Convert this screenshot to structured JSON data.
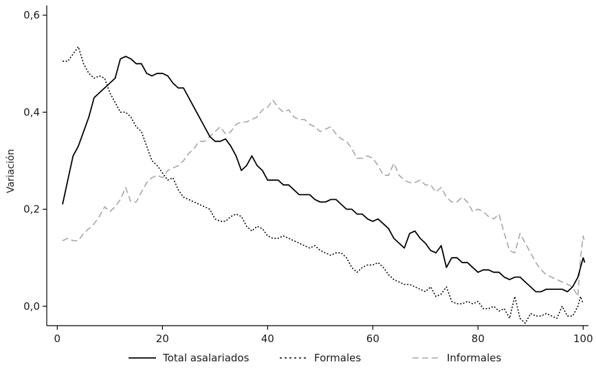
{
  "chart_data": {
    "type": "line",
    "title": "",
    "xlabel": "",
    "ylabel": "Variación",
    "xlim": [
      -2,
      101
    ],
    "ylim": [
      -0.04,
      0.62
    ],
    "xticks": [
      0,
      20,
      40,
      60,
      80,
      100
    ],
    "xtick_labels": [
      "0",
      "20",
      "40",
      "60",
      "80",
      "100"
    ],
    "yticks": [
      0.0,
      0.2,
      0.4,
      0.6
    ],
    "ytick_labels": [
      "0,0",
      "0,2",
      "0,4",
      "0,6"
    ],
    "grid": false,
    "legend_position": "bottom",
    "series": [
      {
        "name": "Total asalariados",
        "color": "#000000",
        "style": "solid",
        "points": [
          [
            1,
            0.21
          ],
          [
            2,
            0.26
          ],
          [
            3,
            0.31
          ],
          [
            4,
            0.33
          ],
          [
            5,
            0.36
          ],
          [
            6,
            0.39
          ],
          [
            7,
            0.43
          ],
          [
            8,
            0.44
          ],
          [
            9,
            0.45
          ],
          [
            10,
            0.46
          ],
          [
            11,
            0.47
          ],
          [
            12,
            0.51
          ],
          [
            13,
            0.515
          ],
          [
            14,
            0.51
          ],
          [
            15,
            0.5
          ],
          [
            16,
            0.5
          ],
          [
            17,
            0.48
          ],
          [
            18,
            0.475
          ],
          [
            19,
            0.48
          ],
          [
            20,
            0.48
          ],
          [
            21,
            0.475
          ],
          [
            22,
            0.46
          ],
          [
            23,
            0.45
          ],
          [
            24,
            0.45
          ],
          [
            25,
            0.43
          ],
          [
            26,
            0.41
          ],
          [
            27,
            0.39
          ],
          [
            28,
            0.37
          ],
          [
            29,
            0.35
          ],
          [
            30,
            0.34
          ],
          [
            31,
            0.34
          ],
          [
            32,
            0.345
          ],
          [
            33,
            0.33
          ],
          [
            34,
            0.31
          ],
          [
            35,
            0.28
          ],
          [
            36,
            0.29
          ],
          [
            37,
            0.31
          ],
          [
            38,
            0.29
          ],
          [
            39,
            0.28
          ],
          [
            40,
            0.26
          ],
          [
            41,
            0.26
          ],
          [
            42,
            0.26
          ],
          [
            43,
            0.25
          ],
          [
            44,
            0.25
          ],
          [
            45,
            0.24
          ],
          [
            46,
            0.23
          ],
          [
            47,
            0.23
          ],
          [
            48,
            0.23
          ],
          [
            49,
            0.22
          ],
          [
            50,
            0.215
          ],
          [
            51,
            0.215
          ],
          [
            52,
            0.22
          ],
          [
            53,
            0.22
          ],
          [
            54,
            0.21
          ],
          [
            55,
            0.2
          ],
          [
            56,
            0.2
          ],
          [
            57,
            0.19
          ],
          [
            58,
            0.19
          ],
          [
            59,
            0.18
          ],
          [
            60,
            0.175
          ],
          [
            61,
            0.18
          ],
          [
            62,
            0.17
          ],
          [
            63,
            0.16
          ],
          [
            64,
            0.14
          ],
          [
            65,
            0.13
          ],
          [
            66,
            0.12
          ],
          [
            67,
            0.15
          ],
          [
            68,
            0.155
          ],
          [
            69,
            0.14
          ],
          [
            70,
            0.13
          ],
          [
            71,
            0.115
          ],
          [
            72,
            0.11
          ],
          [
            73,
            0.125
          ],
          [
            74,
            0.08
          ],
          [
            75,
            0.1
          ],
          [
            76,
            0.1
          ],
          [
            77,
            0.09
          ],
          [
            78,
            0.09
          ],
          [
            79,
            0.08
          ],
          [
            80,
            0.07
          ],
          [
            81,
            0.075
          ],
          [
            82,
            0.075
          ],
          [
            83,
            0.07
          ],
          [
            84,
            0.07
          ],
          [
            85,
            0.06
          ],
          [
            86,
            0.055
          ],
          [
            87,
            0.06
          ],
          [
            88,
            0.06
          ],
          [
            89,
            0.05
          ],
          [
            90,
            0.04
          ],
          [
            91,
            0.03
          ],
          [
            92,
            0.03
          ],
          [
            93,
            0.035
          ],
          [
            94,
            0.035
          ],
          [
            95,
            0.035
          ],
          [
            96,
            0.035
          ],
          [
            97,
            0.03
          ],
          [
            98,
            0.04
          ],
          [
            99,
            0.06
          ],
          [
            99.5,
            0.08
          ],
          [
            100,
            0.1
          ],
          [
            100.3,
            0.09
          ]
        ]
      },
      {
        "name": "Formales",
        "color": "#000000",
        "style": "dotted",
        "points": [
          [
            1,
            0.505
          ],
          [
            2,
            0.505
          ],
          [
            3,
            0.52
          ],
          [
            4,
            0.535
          ],
          [
            5,
            0.5
          ],
          [
            6,
            0.48
          ],
          [
            7,
            0.47
          ],
          [
            8,
            0.475
          ],
          [
            9,
            0.47
          ],
          [
            10,
            0.44
          ],
          [
            11,
            0.42
          ],
          [
            12,
            0.4
          ],
          [
            13,
            0.4
          ],
          [
            14,
            0.39
          ],
          [
            15,
            0.37
          ],
          [
            16,
            0.36
          ],
          [
            17,
            0.33
          ],
          [
            18,
            0.3
          ],
          [
            19,
            0.29
          ],
          [
            20,
            0.275
          ],
          [
            21,
            0.26
          ],
          [
            22,
            0.265
          ],
          [
            23,
            0.24
          ],
          [
            24,
            0.225
          ],
          [
            25,
            0.22
          ],
          [
            26,
            0.215
          ],
          [
            27,
            0.21
          ],
          [
            28,
            0.205
          ],
          [
            29,
            0.2
          ],
          [
            30,
            0.18
          ],
          [
            31,
            0.175
          ],
          [
            32,
            0.175
          ],
          [
            33,
            0.185
          ],
          [
            34,
            0.19
          ],
          [
            35,
            0.185
          ],
          [
            36,
            0.165
          ],
          [
            37,
            0.155
          ],
          [
            38,
            0.165
          ],
          [
            39,
            0.16
          ],
          [
            40,
            0.145
          ],
          [
            41,
            0.14
          ],
          [
            42,
            0.14
          ],
          [
            43,
            0.145
          ],
          [
            44,
            0.14
          ],
          [
            45,
            0.135
          ],
          [
            46,
            0.13
          ],
          [
            47,
            0.125
          ],
          [
            48,
            0.12
          ],
          [
            49,
            0.125
          ],
          [
            50,
            0.115
          ],
          [
            51,
            0.11
          ],
          [
            52,
            0.105
          ],
          [
            53,
            0.11
          ],
          [
            54,
            0.11
          ],
          [
            55,
            0.1
          ],
          [
            56,
            0.08
          ],
          [
            57,
            0.07
          ],
          [
            58,
            0.08
          ],
          [
            59,
            0.085
          ],
          [
            60,
            0.085
          ],
          [
            61,
            0.09
          ],
          [
            62,
            0.08
          ],
          [
            63,
            0.065
          ],
          [
            64,
            0.055
          ],
          [
            65,
            0.05
          ],
          [
            66,
            0.045
          ],
          [
            67,
            0.045
          ],
          [
            68,
            0.04
          ],
          [
            69,
            0.035
          ],
          [
            70,
            0.03
          ],
          [
            71,
            0.04
          ],
          [
            72,
            0.02
          ],
          [
            73,
            0.025
          ],
          [
            74,
            0.04
          ],
          [
            75,
            0.01
          ],
          [
            76,
            0.005
          ],
          [
            77,
            0.005
          ],
          [
            78,
            0.01
          ],
          [
            79,
            0.005
          ],
          [
            80,
            0.01
          ],
          [
            81,
            -0.005
          ],
          [
            82,
            -0.005
          ],
          [
            83,
            0.0
          ],
          [
            84,
            -0.01
          ],
          [
            85,
            -0.005
          ],
          [
            86,
            -0.025
          ],
          [
            87,
            0.02
          ],
          [
            88,
            -0.025
          ],
          [
            89,
            -0.035
          ],
          [
            90,
            -0.015
          ],
          [
            91,
            -0.02
          ],
          [
            92,
            -0.02
          ],
          [
            93,
            -0.015
          ],
          [
            94,
            -0.02
          ],
          [
            95,
            -0.025
          ],
          [
            96,
            0.0
          ],
          [
            97,
            -0.02
          ],
          [
            98,
            -0.02
          ],
          [
            99,
            0.0
          ],
          [
            99.5,
            0.02
          ],
          [
            100,
            0.005
          ]
        ]
      },
      {
        "name": "Informales",
        "color": "#a6a6a6",
        "style": "dashed",
        "points": [
          [
            1,
            0.135
          ],
          [
            2,
            0.14
          ],
          [
            3,
            0.135
          ],
          [
            4,
            0.135
          ],
          [
            5,
            0.15
          ],
          [
            6,
            0.16
          ],
          [
            7,
            0.17
          ],
          [
            8,
            0.185
          ],
          [
            9,
            0.205
          ],
          [
            10,
            0.195
          ],
          [
            11,
            0.205
          ],
          [
            12,
            0.22
          ],
          [
            13,
            0.245
          ],
          [
            14,
            0.215
          ],
          [
            15,
            0.215
          ],
          [
            16,
            0.235
          ],
          [
            17,
            0.255
          ],
          [
            18,
            0.265
          ],
          [
            19,
            0.27
          ],
          [
            20,
            0.265
          ],
          [
            21,
            0.28
          ],
          [
            22,
            0.285
          ],
          [
            23,
            0.29
          ],
          [
            24,
            0.3
          ],
          [
            25,
            0.315
          ],
          [
            26,
            0.325
          ],
          [
            27,
            0.34
          ],
          [
            28,
            0.34
          ],
          [
            29,
            0.35
          ],
          [
            30,
            0.36
          ],
          [
            31,
            0.37
          ],
          [
            32,
            0.355
          ],
          [
            33,
            0.36
          ],
          [
            34,
            0.375
          ],
          [
            35,
            0.38
          ],
          [
            36,
            0.38
          ],
          [
            37,
            0.385
          ],
          [
            38,
            0.39
          ],
          [
            39,
            0.405
          ],
          [
            40,
            0.41
          ],
          [
            41,
            0.425
          ],
          [
            42,
            0.41
          ],
          [
            43,
            0.4
          ],
          [
            44,
            0.405
          ],
          [
            45,
            0.39
          ],
          [
            46,
            0.385
          ],
          [
            47,
            0.385
          ],
          [
            48,
            0.375
          ],
          [
            49,
            0.37
          ],
          [
            50,
            0.36
          ],
          [
            51,
            0.365
          ],
          [
            52,
            0.37
          ],
          [
            53,
            0.355
          ],
          [
            54,
            0.345
          ],
          [
            55,
            0.34
          ],
          [
            56,
            0.325
          ],
          [
            57,
            0.305
          ],
          [
            58,
            0.305
          ],
          [
            59,
            0.31
          ],
          [
            60,
            0.305
          ],
          [
            61,
            0.29
          ],
          [
            62,
            0.27
          ],
          [
            63,
            0.27
          ],
          [
            64,
            0.295
          ],
          [
            65,
            0.27
          ],
          [
            66,
            0.26
          ],
          [
            67,
            0.255
          ],
          [
            68,
            0.255
          ],
          [
            69,
            0.26
          ],
          [
            70,
            0.25
          ],
          [
            71,
            0.25
          ],
          [
            72,
            0.235
          ],
          [
            73,
            0.245
          ],
          [
            74,
            0.225
          ],
          [
            75,
            0.215
          ],
          [
            76,
            0.215
          ],
          [
            77,
            0.225
          ],
          [
            78,
            0.215
          ],
          [
            79,
            0.195
          ],
          [
            80,
            0.2
          ],
          [
            81,
            0.195
          ],
          [
            82,
            0.185
          ],
          [
            83,
            0.18
          ],
          [
            84,
            0.19
          ],
          [
            85,
            0.15
          ],
          [
            86,
            0.115
          ],
          [
            87,
            0.11
          ],
          [
            88,
            0.15
          ],
          [
            89,
            0.13
          ],
          [
            90,
            0.11
          ],
          [
            91,
            0.09
          ],
          [
            92,
            0.075
          ],
          [
            93,
            0.065
          ],
          [
            94,
            0.06
          ],
          [
            95,
            0.055
          ],
          [
            96,
            0.05
          ],
          [
            97,
            0.045
          ],
          [
            98,
            0.04
          ],
          [
            99,
            0.02
          ],
          [
            99.5,
            0.1
          ],
          [
            100,
            0.145
          ],
          [
            100.3,
            0.13
          ]
        ]
      }
    ]
  }
}
